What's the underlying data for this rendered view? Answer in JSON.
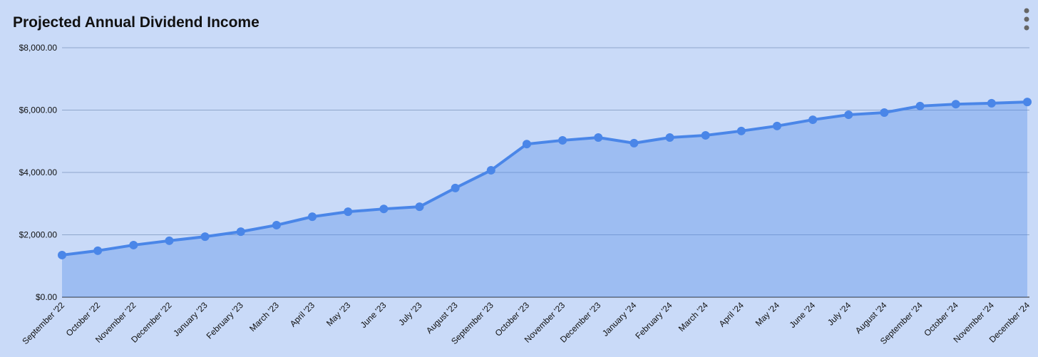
{
  "chart_data": {
    "type": "area",
    "title": "Projected Annual Dividend Income",
    "categories": [
      "September '22",
      "October '22",
      "November '22",
      "December '22",
      "January '23",
      "February '23",
      "March '23",
      "April '23",
      "May '23",
      "June '23",
      "July '23",
      "August '23",
      "September '23",
      "October '23",
      "November '23",
      "December '23",
      "January '24",
      "February '24",
      "March '24",
      "April '24",
      "May '24",
      "June '24",
      "July '24",
      "August '24",
      "September '24",
      "October '24",
      "November '24",
      "December '24"
    ],
    "series": [
      {
        "color": "#4a86e8",
        "values": [
          1350,
          1490,
          1670,
          1810,
          1940,
          2100,
          2310,
          2580,
          2740,
          2830,
          2900,
          3500,
          4070,
          4910,
          5030,
          5120,
          4940,
          5120,
          5190,
          5330,
          5490,
          5690,
          5850,
          5920,
          6130,
          6190,
          6220,
          6260
        ]
      }
    ],
    "ylim": [
      0,
      8000
    ],
    "yticks": [
      {
        "value": 0,
        "label": "$0.00"
      },
      {
        "value": 2000,
        "label": "$2,000.00"
      },
      {
        "value": 4000,
        "label": "$4,000.00"
      },
      {
        "value": 6000,
        "label": "$6,000.00"
      },
      {
        "value": 8000,
        "label": "$8,000.00"
      }
    ],
    "grid": true
  }
}
